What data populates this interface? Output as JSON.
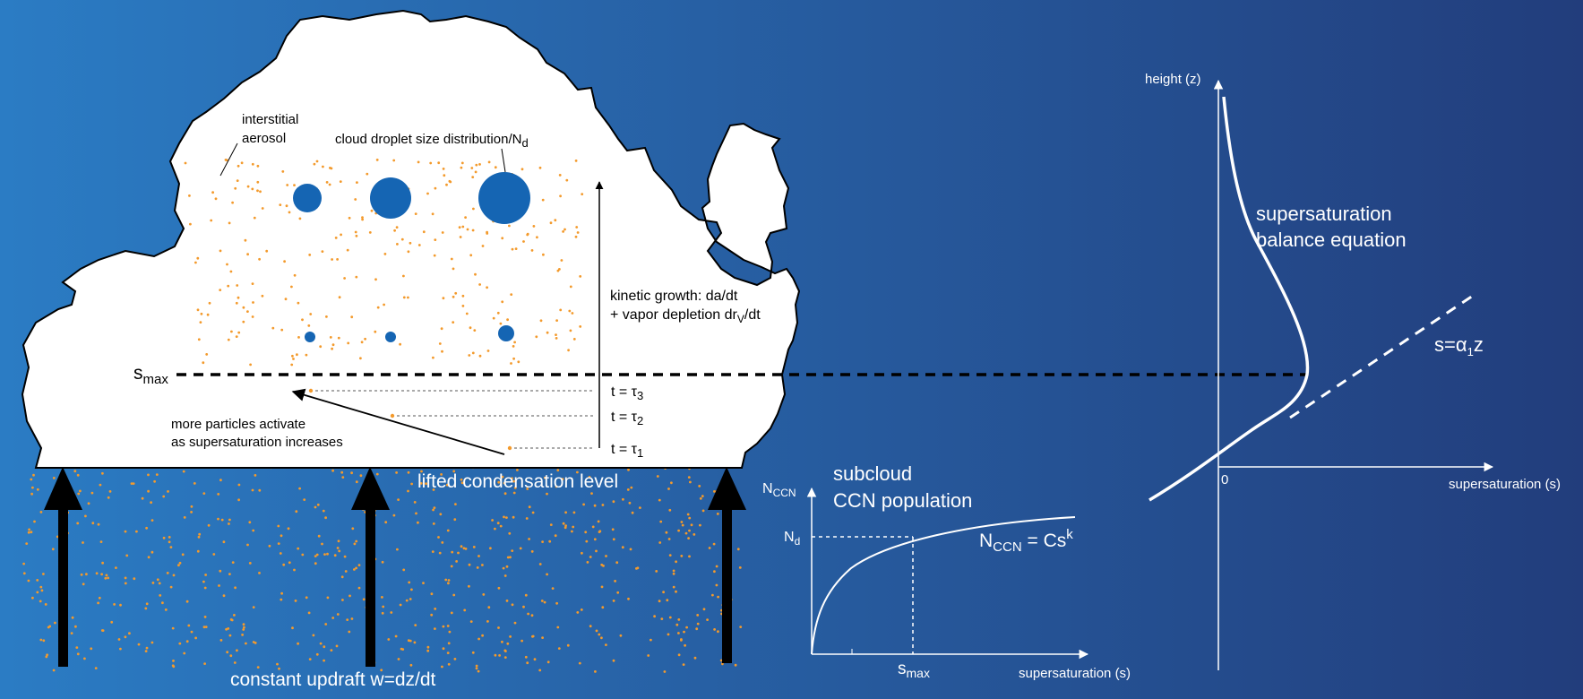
{
  "cloud": {
    "interstitial_line1": "interstitial",
    "interstitial_line2": "aerosol",
    "droplet_label": "cloud droplet size distribution/N",
    "droplet_label_sub": "d",
    "kinetic_line1": "kinetic growth: da/dt",
    "kinetic_line2_pre": "+ vapor depletion dr",
    "kinetic_line2_sub": "V",
    "kinetic_line2_post": "/dt",
    "smax_main": "s",
    "smax_sub": "max",
    "activate_line1": "more particles activate",
    "activate_line2": "as supersaturation increases",
    "t3_pre": "t = τ",
    "t3_sub": "3",
    "t2_pre": "t = τ",
    "t2_sub": "2",
    "t1_pre": "t = τ",
    "t1_sub": "1",
    "lcl": "lifted condensation level"
  },
  "updraft": {
    "label": "constant updraft w=dz/dt"
  },
  "ccn_plot": {
    "title_line1": "subcloud",
    "title_line2": "CCN population",
    "yaxis_main": "N",
    "yaxis_sub": "CCN",
    "nd_main": "N",
    "nd_sub": "d",
    "eq_main": "N",
    "eq_sub": "CCN",
    "eq_mid": " = Cs",
    "eq_sup": "k",
    "smax_main": "s",
    "smax_sub": "max",
    "xaxis": "supersaturation (s)"
  },
  "profile_plot": {
    "yaxis": "height (z)",
    "xaxis": "supersaturation (s)",
    "origin": "0",
    "balance_line1": "supersaturation",
    "balance_line2": "balance equation",
    "line_eq_pre": "s=",
    "line_eq_alpha": "α",
    "line_eq_sub": "1",
    "line_eq_post": "z"
  },
  "colors": {
    "bg_left": "#2b7cc4",
    "bg_right": "#223d7c",
    "droplet": "#1565b3",
    "aerosol": "#f39a2c"
  }
}
